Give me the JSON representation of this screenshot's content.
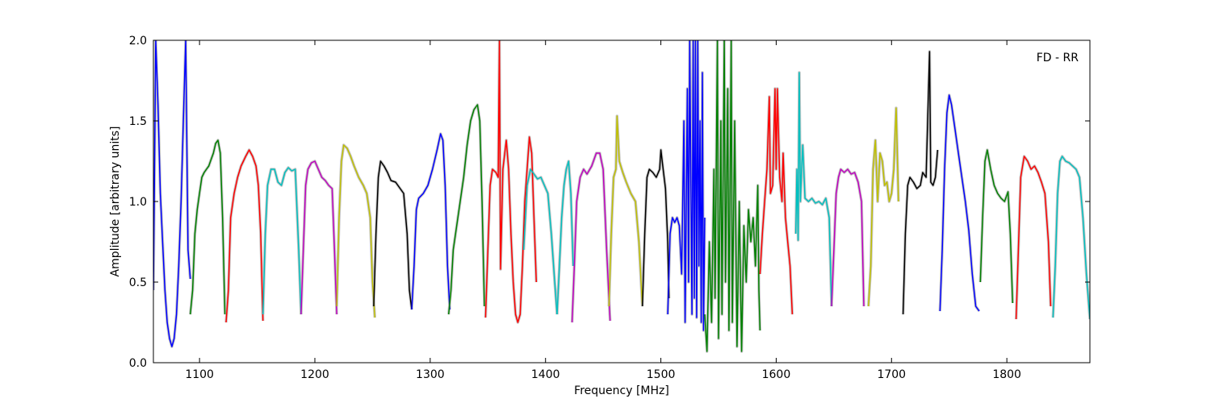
{
  "chart_data": {
    "type": "line",
    "annotation": "FD - RR",
    "xlabel": "Frequency [MHz]",
    "ylabel": "Amplitude [arbitrary units]",
    "xlim": [
      1060,
      1872
    ],
    "ylim": [
      0.0,
      2.0
    ],
    "xticks": [
      1100,
      1200,
      1300,
      1400,
      1500,
      1600,
      1700,
      1800
    ],
    "yticks": [
      0.0,
      0.5,
      1.0,
      1.5,
      2.0
    ],
    "xtick_labels": [
      "1100",
      "1200",
      "1300",
      "1400",
      "1500",
      "1600",
      "1700",
      "1800"
    ],
    "ytick_labels": [
      "0.0",
      "0.5",
      "1.0",
      "1.5",
      "2.0"
    ],
    "grid": false,
    "background_series_color": "#bfbfbf",
    "colors": {
      "b": "#0000ff",
      "g": "#008000",
      "r": "#ff0000",
      "c": "#00bfbf",
      "m": "#bf00bf",
      "y": "#bfbf00",
      "k": "#000000"
    },
    "series": [
      {
        "color": "b",
        "x": [
          1060,
          1062,
          1064,
          1066,
          1068,
          1070,
          1072,
          1074,
          1076,
          1078,
          1080,
          1082,
          1084,
          1086,
          1088,
          1090,
          1092
        ],
        "y": [
          0.45,
          2.0,
          1.6,
          1.05,
          0.75,
          0.45,
          0.25,
          0.15,
          0.1,
          0.15,
          0.3,
          0.6,
          1.0,
          1.5,
          2.0,
          0.7,
          0.52
        ]
      },
      {
        "color": "g",
        "x": [
          1092,
          1094,
          1096,
          1098,
          1100,
          1102,
          1104,
          1106,
          1108,
          1110,
          1112,
          1114,
          1116,
          1118,
          1120,
          1122
        ],
        "y": [
          0.3,
          0.45,
          0.8,
          0.95,
          1.05,
          1.15,
          1.18,
          1.2,
          1.22,
          1.26,
          1.3,
          1.36,
          1.38,
          1.3,
          0.9,
          0.3
        ]
      },
      {
        "color": "r",
        "x": [
          1123,
          1125,
          1127,
          1130,
          1133,
          1136,
          1140,
          1143,
          1146,
          1149,
          1151,
          1153,
          1155
        ],
        "y": [
          0.25,
          0.45,
          0.9,
          1.05,
          1.15,
          1.22,
          1.28,
          1.32,
          1.28,
          1.22,
          1.1,
          0.8,
          0.26
        ]
      },
      {
        "color": "c",
        "x": [
          1155,
          1157,
          1159,
          1162,
          1165,
          1168,
          1171,
          1174,
          1177,
          1180,
          1183,
          1186,
          1188
        ],
        "y": [
          0.3,
          0.8,
          1.1,
          1.2,
          1.2,
          1.12,
          1.1,
          1.18,
          1.21,
          1.19,
          1.2,
          0.7,
          0.3
        ]
      },
      {
        "color": "m",
        "x": [
          1188,
          1190,
          1192,
          1194,
          1197,
          1200,
          1203,
          1206,
          1209,
          1212,
          1215,
          1217,
          1219
        ],
        "y": [
          0.3,
          0.7,
          1.1,
          1.2,
          1.24,
          1.25,
          1.2,
          1.15,
          1.13,
          1.1,
          1.08,
          0.7,
          0.3
        ]
      },
      {
        "color": "y",
        "x": [
          1219,
          1221,
          1223,
          1225,
          1228,
          1231,
          1234,
          1238,
          1242,
          1245,
          1248,
          1250,
          1252
        ],
        "y": [
          0.35,
          0.9,
          1.25,
          1.35,
          1.33,
          1.28,
          1.22,
          1.15,
          1.1,
          1.05,
          0.9,
          0.5,
          0.28
        ]
      },
      {
        "color": "k",
        "x": [
          1251,
          1253,
          1255,
          1257,
          1260,
          1263,
          1266,
          1270,
          1274,
          1277,
          1280,
          1282,
          1284
        ],
        "y": [
          0.35,
          0.8,
          1.15,
          1.25,
          1.22,
          1.18,
          1.13,
          1.12,
          1.08,
          1.05,
          0.8,
          0.45,
          0.33
        ]
      },
      {
        "color": "b",
        "x": [
          1284,
          1286,
          1288,
          1290,
          1294,
          1298,
          1302,
          1306,
          1309,
          1311,
          1313,
          1315,
          1317
        ],
        "y": [
          0.33,
          0.6,
          0.95,
          1.02,
          1.05,
          1.1,
          1.2,
          1.32,
          1.42,
          1.38,
          1.1,
          0.6,
          0.33
        ]
      },
      {
        "color": "g",
        "x": [
          1316,
          1318,
          1320,
          1323,
          1326,
          1329,
          1332,
          1335,
          1338,
          1341,
          1343,
          1345,
          1347
        ],
        "y": [
          0.3,
          0.45,
          0.7,
          0.85,
          1.0,
          1.15,
          1.35,
          1.5,
          1.57,
          1.6,
          1.5,
          1.0,
          0.35
        ]
      },
      {
        "color": "r",
        "x": [
          1348,
          1350,
          1352,
          1354,
          1357,
          1359,
          1360,
          1361,
          1363,
          1366,
          1368,
          1370,
          1372,
          1374,
          1376,
          1378,
          1380,
          1382,
          1384,
          1386,
          1388,
          1390,
          1392
        ],
        "y": [
          0.28,
          0.7,
          1.1,
          1.2,
          1.18,
          1.15,
          2.0,
          0.58,
          1.2,
          1.38,
          1.2,
          0.8,
          0.5,
          0.3,
          0.25,
          0.3,
          0.6,
          1.0,
          1.2,
          1.4,
          1.3,
          0.9,
          0.5
        ]
      },
      {
        "color": "c",
        "x": [
          1381,
          1384,
          1387,
          1390,
          1393,
          1396,
          1399,
          1402,
          1405,
          1408,
          1410
        ],
        "y": [
          0.7,
          1.1,
          1.2,
          1.17,
          1.14,
          1.15,
          1.1,
          1.05,
          0.8,
          0.5,
          0.3
        ]
      },
      {
        "color": "c",
        "x": [
          1410,
          1412,
          1414,
          1416,
          1418,
          1420,
          1422,
          1424
        ],
        "y": [
          0.3,
          0.6,
          0.9,
          1.1,
          1.2,
          1.25,
          1.05,
          0.6
        ]
      },
      {
        "color": "m",
        "x": [
          1423,
          1425,
          1427,
          1430,
          1433,
          1436,
          1440,
          1444,
          1447,
          1450,
          1453,
          1456
        ],
        "y": [
          0.25,
          0.6,
          1.0,
          1.15,
          1.2,
          1.17,
          1.22,
          1.3,
          1.3,
          1.2,
          0.7,
          0.26
        ]
      },
      {
        "color": "y",
        "x": [
          1455,
          1457,
          1459,
          1461,
          1462,
          1464,
          1467,
          1470,
          1474,
          1478,
          1481,
          1484
        ],
        "y": [
          0.35,
          0.8,
          1.15,
          1.2,
          1.53,
          1.25,
          1.18,
          1.12,
          1.05,
          1.0,
          0.75,
          0.35
        ]
      },
      {
        "color": "k",
        "x": [
          1484,
          1486,
          1488,
          1490,
          1493,
          1496,
          1499,
          1500,
          1502,
          1504,
          1506,
          1507
        ],
        "y": [
          0.35,
          0.8,
          1.15,
          1.2,
          1.18,
          1.15,
          1.2,
          1.32,
          1.2,
          1.08,
          0.75,
          0.4
        ]
      },
      {
        "color": "b",
        "x": [
          1506,
          1508,
          1510,
          1512,
          1514,
          1516,
          1518,
          1520,
          1521,
          1523,
          1524,
          1525,
          1527,
          1528,
          1529,
          1530,
          1531,
          1532,
          1533,
          1534,
          1535,
          1536,
          1537,
          1538
        ],
        "y": [
          0.3,
          0.8,
          0.9,
          0.87,
          0.9,
          0.85,
          0.55,
          1.5,
          0.25,
          1.7,
          0.5,
          2.0,
          0.3,
          2.0,
          0.4,
          2.0,
          0.28,
          2.0,
          0.6,
          1.5,
          0.25,
          1.8,
          0.2,
          0.9
        ]
      },
      {
        "color": "g",
        "x": [
          1538,
          1540,
          1542,
          1544,
          1546,
          1547,
          1549,
          1550,
          1552,
          1553,
          1555,
          1556,
          1558,
          1559,
          1561,
          1562,
          1564,
          1566,
          1568,
          1570,
          1572,
          1574,
          1576,
          1578,
          1580,
          1582,
          1584,
          1585,
          1586
        ],
        "y": [
          0.3,
          0.07,
          0.75,
          0.25,
          1.2,
          0.4,
          2.0,
          0.15,
          1.5,
          0.3,
          2.0,
          0.5,
          1.7,
          0.2,
          2.0,
          0.25,
          1.5,
          0.1,
          1.0,
          0.07,
          0.85,
          0.5,
          0.95,
          0.75,
          0.9,
          0.6,
          1.1,
          0.45,
          0.2
        ]
      },
      {
        "color": "r",
        "x": [
          1586,
          1588,
          1590,
          1592,
          1594,
          1595,
          1597,
          1599,
          1600,
          1601,
          1603,
          1605,
          1606,
          1608,
          1610,
          1612,
          1614
        ],
        "y": [
          0.55,
          0.8,
          1.0,
          1.2,
          1.65,
          1.05,
          1.1,
          1.7,
          1.2,
          1.7,
          1.15,
          1.0,
          1.3,
          0.9,
          0.75,
          0.6,
          0.3
        ]
      },
      {
        "color": "c",
        "x": [
          1617,
          1618,
          1619,
          1620,
          1621,
          1622,
          1623,
          1625,
          1628,
          1631,
          1634,
          1637,
          1640,
          1643,
          1646,
          1648
        ],
        "y": [
          0.8,
          1.2,
          0.76,
          1.8,
          1.0,
          1.2,
          1.35,
          1.02,
          1.0,
          1.02,
          0.99,
          1.0,
          0.98,
          1.02,
          0.9,
          0.35
        ]
      },
      {
        "color": "m",
        "x": [
          1648,
          1650,
          1652,
          1654,
          1656,
          1659,
          1662,
          1665,
          1668,
          1671,
          1674,
          1676
        ],
        "y": [
          0.35,
          0.7,
          1.05,
          1.15,
          1.2,
          1.18,
          1.2,
          1.17,
          1.18,
          1.12,
          1.0,
          0.35
        ]
      },
      {
        "color": "y",
        "x": [
          1680,
          1682,
          1684,
          1686,
          1688,
          1690,
          1692,
          1694,
          1696,
          1698,
          1700,
          1702,
          1704,
          1706
        ],
        "y": [
          0.35,
          0.6,
          1.2,
          1.38,
          1.0,
          1.3,
          1.25,
          1.1,
          1.12,
          1.0,
          1.05,
          1.2,
          1.58,
          1.0
        ]
      },
      {
        "color": "k",
        "x": [
          1710,
          1712,
          1714,
          1716,
          1719,
          1722,
          1725,
          1727,
          1730,
          1733,
          1734,
          1736,
          1738,
          1740
        ],
        "y": [
          0.3,
          0.8,
          1.1,
          1.15,
          1.12,
          1.08,
          1.1,
          1.18,
          1.15,
          1.93,
          1.12,
          1.1,
          1.15,
          1.32
        ]
      },
      {
        "color": "b",
        "x": [
          1742,
          1744,
          1746,
          1748,
          1750,
          1752,
          1755,
          1758,
          1761,
          1764,
          1767,
          1770,
          1773,
          1776
        ],
        "y": [
          0.32,
          0.7,
          1.2,
          1.55,
          1.66,
          1.6,
          1.45,
          1.3,
          1.15,
          1.0,
          0.82,
          0.55,
          0.35,
          0.32
        ]
      },
      {
        "color": "g",
        "x": [
          1777,
          1779,
          1781,
          1783,
          1786,
          1789,
          1792,
          1795,
          1798,
          1801,
          1803,
          1805
        ],
        "y": [
          0.5,
          0.9,
          1.25,
          1.32,
          1.2,
          1.1,
          1.05,
          1.02,
          1.0,
          1.06,
          0.8,
          0.37
        ]
      },
      {
        "color": "r",
        "x": [
          1808,
          1810,
          1812,
          1815,
          1818,
          1821,
          1824,
          1827,
          1830,
          1833,
          1836,
          1838
        ],
        "y": [
          0.27,
          0.7,
          1.15,
          1.28,
          1.25,
          1.2,
          1.22,
          1.18,
          1.12,
          1.05,
          0.75,
          0.35
        ]
      },
      {
        "color": "c",
        "x": [
          1840,
          1842,
          1844,
          1846,
          1848,
          1851,
          1854,
          1857,
          1860,
          1863,
          1866,
          1869,
          1872
        ],
        "y": [
          0.28,
          0.6,
          1.05,
          1.25,
          1.28,
          1.25,
          1.24,
          1.22,
          1.2,
          1.15,
          0.9,
          0.55,
          0.27
        ]
      }
    ]
  }
}
